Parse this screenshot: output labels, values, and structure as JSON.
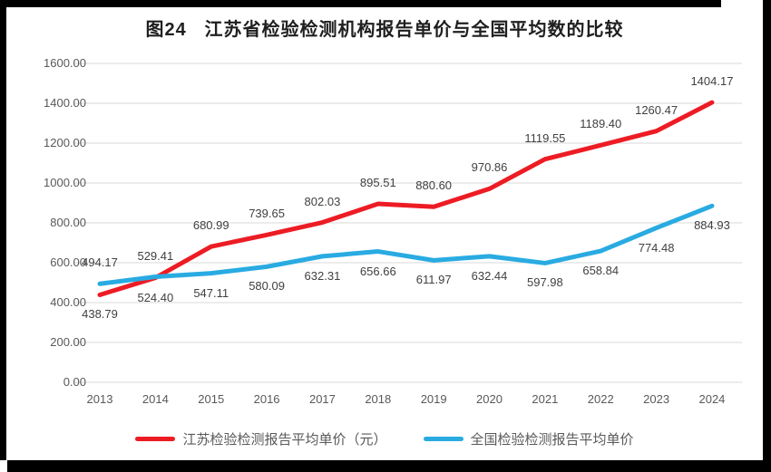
{
  "title": "图24   江苏省检验检测机构报告单价与全国平均数的比较",
  "chart_data": {
    "type": "line",
    "x": [
      "2013",
      "2014",
      "2015",
      "2016",
      "2017",
      "2018",
      "2019",
      "2020",
      "2021",
      "2022",
      "2023",
      "2024"
    ],
    "series": [
      {
        "name": "江苏检验检测报告平均单价（元）",
        "color": "#ED1C24",
        "values": [
          438.79,
          524.4,
          680.99,
          739.65,
          802.03,
          895.51,
          880.6,
          970.86,
          1119.55,
          1189.4,
          1260.47,
          1404.17
        ],
        "labels": [
          "438.79",
          "524.40",
          "680.99",
          "739.65",
          "802.03",
          "895.51",
          "880.60",
          "970.86",
          "1119.55",
          "1189.40",
          "1260.47",
          "1404.17"
        ],
        "label_placement": [
          "below",
          "below",
          "above",
          "above",
          "above",
          "above",
          "above",
          "above",
          "above",
          "above",
          "above",
          "above"
        ]
      },
      {
        "name": "全国检验检测报告平均单价",
        "color": "#29ABE2",
        "values": [
          494.17,
          529.41,
          547.11,
          580.09,
          632.31,
          656.66,
          611.97,
          632.44,
          597.98,
          658.84,
          774.48,
          884.93
        ],
        "labels": [
          "494.17",
          "529.41",
          "547.11",
          "580.09",
          "632.31",
          "656.66",
          "611.97",
          "632.44",
          "597.98",
          "658.84",
          "774.48",
          "884.93"
        ],
        "label_placement": [
          "above",
          "above",
          "below",
          "below",
          "below",
          "below",
          "below",
          "below",
          "below",
          "below",
          "below",
          "below"
        ]
      }
    ],
    "ylim": [
      0,
      1600
    ],
    "yticks": [
      "0.00",
      "200.00",
      "400.00",
      "600.00",
      "800.00",
      "1000.00",
      "1200.00",
      "1400.00",
      "1600.00"
    ],
    "grid": true,
    "legend_position": "bottom"
  },
  "colors": {
    "grid": "#D9D9D9",
    "tick_text": "#595959",
    "data_label_text": "#404040",
    "title_text": "#1F1F1F",
    "frame": "#000000"
  }
}
